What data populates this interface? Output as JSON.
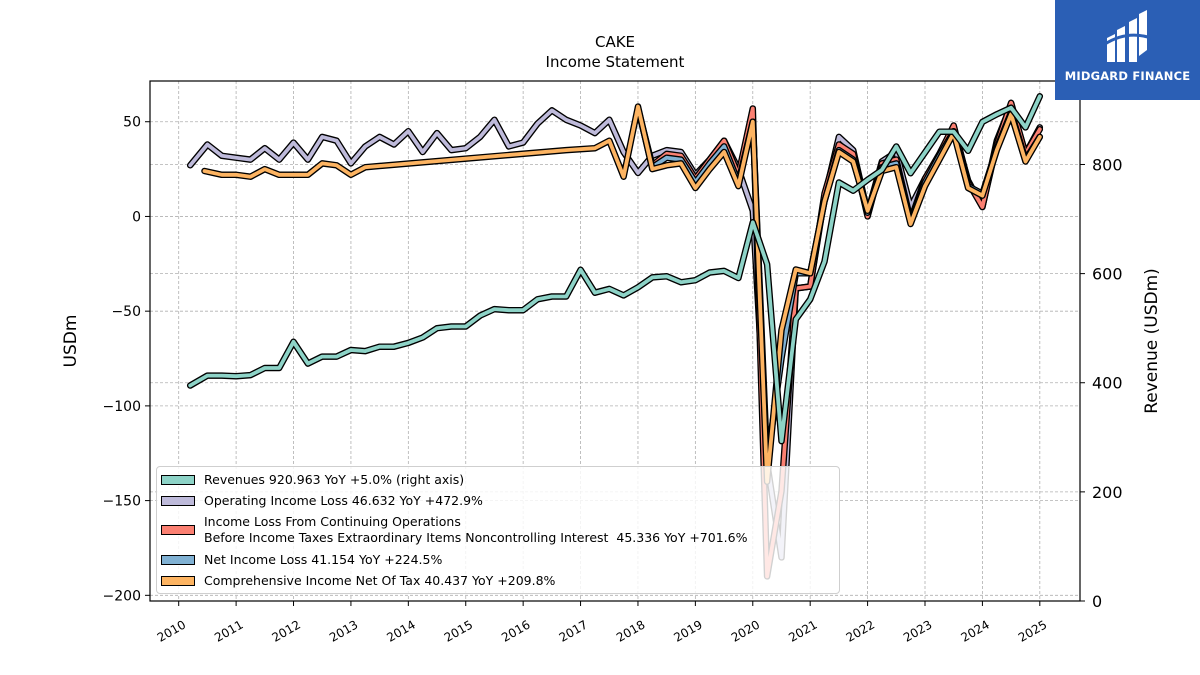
{
  "header": {
    "title": "CAKE",
    "subtitle": "Income Statement"
  },
  "logo": {
    "text": "MIDGARD FINANCE",
    "icon": "midgard-logo-icon",
    "background": "#2b5fb5"
  },
  "chart_data": {
    "type": "line",
    "title": "CAKE",
    "subtitle": "Income Statement",
    "ylabel": "USDm",
    "ylabel_right": "Revenue (USDm)",
    "ylim": [
      -203,
      71.5
    ],
    "ylim_right": [
      0,
      953
    ],
    "yticks": [
      -200,
      -150,
      -100,
      -50,
      0,
      50
    ],
    "yticks_right": [
      0,
      200,
      400,
      600,
      800
    ],
    "xlim": [
      2009.5,
      2025.7
    ],
    "xticks": [
      "2010",
      "2011",
      "2012",
      "2013",
      "2014",
      "2015",
      "2016",
      "2017",
      "2018",
      "2019",
      "2020",
      "2021",
      "2022",
      "2023",
      "2024",
      "2025"
    ],
    "grid": true,
    "legend_position": "lower-left",
    "legend": [
      "Revenues  920.963 YoY +5.0% (right axis)",
      "Operating Income Loss  46.632 YoY +472.9%",
      "Income Loss From Continuing Operations\nBefore Income Taxes Extraordinary Items Noncontrolling Interest  45.336 YoY +701.6%",
      "Net Income Loss  41.154 YoY +224.5%",
      "Comprehensive Income Net Of Tax  40.437 YoY +209.8%"
    ],
    "series": [
      {
        "name": "Revenues",
        "axis": "right",
        "color": "#8dd3c7",
        "x": [
          2010.2,
          2010.5,
          2010.75,
          2011.0,
          2011.25,
          2011.5,
          2011.75,
          2012.0,
          2012.25,
          2012.5,
          2012.75,
          2013.0,
          2013.25,
          2013.5,
          2013.75,
          2014.0,
          2014.25,
          2014.5,
          2014.75,
          2015.0,
          2015.25,
          2015.5,
          2015.75,
          2016.0,
          2016.25,
          2016.5,
          2016.75,
          2017.0,
          2017.25,
          2017.5,
          2017.75,
          2018.0,
          2018.25,
          2018.5,
          2018.75,
          2019.0,
          2019.25,
          2019.5,
          2019.75,
          2020.0,
          2020.25,
          2020.5,
          2020.75,
          2021.0,
          2021.25,
          2021.5,
          2021.75,
          2022.0,
          2022.25,
          2022.5,
          2022.75,
          2023.0,
          2023.25,
          2023.5,
          2023.75,
          2024.0,
          2024.25,
          2024.5,
          2024.75,
          2025.0
        ],
        "values": [
          395,
          413,
          413,
          412,
          414,
          427,
          427,
          475,
          435,
          448,
          448,
          460,
          458,
          466,
          466,
          473,
          483,
          500,
          503,
          503,
          523,
          535,
          533,
          533,
          553,
          558,
          558,
          607,
          565,
          572,
          560,
          575,
          593,
          595,
          584,
          588,
          602,
          605,
          592,
          694,
          617,
          293,
          516,
          553,
          622,
          767,
          752,
          772,
          790,
          833,
          784,
          822,
          860,
          860,
          825,
          878,
          892,
          904,
          868,
          925
        ]
      },
      {
        "name": "Operating Income Loss",
        "axis": "left",
        "color": "#bebada",
        "x": [
          2010.2,
          2010.5,
          2010.75,
          2011.0,
          2011.25,
          2011.5,
          2011.75,
          2012.0,
          2012.25,
          2012.5,
          2012.75,
          2013.0,
          2013.25,
          2013.5,
          2013.75,
          2014.0,
          2014.25,
          2014.5,
          2014.75,
          2015.0,
          2015.25,
          2015.5,
          2015.75,
          2016.0,
          2016.25,
          2016.5,
          2016.75,
          2017.0,
          2017.25,
          2017.5,
          2017.75,
          2018.0,
          2018.25,
          2018.5,
          2018.75,
          2019.0,
          2019.25,
          2019.5,
          2019.75,
          2020.0,
          2020.25,
          2020.5,
          2020.75,
          2021.0,
          2021.25,
          2021.5,
          2021.75,
          2022.0,
          2022.25,
          2022.5,
          2022.75,
          2023.0,
          2023.25,
          2023.5,
          2023.75,
          2024.0,
          2024.25,
          2024.5,
          2024.75,
          2025.0
        ],
        "values": [
          27,
          38,
          32,
          31,
          30,
          36,
          30,
          39,
          30,
          42,
          40,
          28,
          37,
          42,
          38,
          45,
          34,
          44,
          35,
          36,
          42,
          51,
          37,
          39,
          49,
          56,
          51,
          48,
          44,
          51,
          34,
          23,
          32,
          35,
          34,
          22,
          30,
          40,
          25,
          3,
          -130,
          -180,
          -38,
          -37,
          10,
          42,
          35,
          2,
          29,
          34,
          5,
          20,
          32,
          46,
          19,
          5,
          40,
          59,
          33,
          47
        ]
      },
      {
        "name": "Income Loss From Continuing Operations Before Income Taxes Extraordinary Items Noncontrolling Interest",
        "axis": "left",
        "color": "#fb8072",
        "x": [
          2018.0,
          2018.25,
          2018.5,
          2018.75,
          2019.0,
          2019.25,
          2019.5,
          2019.75,
          2020.0,
          2020.25,
          2020.5,
          2020.75,
          2021.0,
          2021.25,
          2021.5,
          2021.75,
          2022.0,
          2022.25,
          2022.5,
          2022.75,
          2023.0,
          2023.25,
          2023.5,
          2023.75,
          2024.0,
          2024.25,
          2024.5,
          2024.75,
          2025.0
        ],
        "values": [
          57,
          27,
          33,
          32,
          20,
          30,
          40,
          22,
          57,
          -190,
          -145,
          -38,
          -37,
          12,
          38,
          33,
          0,
          28,
          30,
          -2,
          20,
          33,
          48,
          18,
          5,
          38,
          60,
          33,
          46
        ]
      },
      {
        "name": "Net Income Loss",
        "axis": "left",
        "color": "#80b1d3",
        "x": [
          2018.0,
          2018.25,
          2018.5,
          2018.75,
          2019.0,
          2019.25,
          2019.5,
          2019.75,
          2020.0,
          2020.25,
          2020.5,
          2020.75,
          2021.0,
          2021.25,
          2021.5,
          2021.75,
          2022.0,
          2022.25,
          2022.5,
          2022.75,
          2023.0,
          2023.25,
          2023.5,
          2023.75,
          2024.0,
          2024.25,
          2024.5,
          2024.75,
          2025.0
        ],
        "values": [
          57,
          26,
          31,
          30,
          18,
          28,
          37,
          18,
          50,
          -130,
          -75,
          -30,
          -30,
          8,
          35,
          30,
          2,
          26,
          28,
          -3,
          18,
          32,
          45,
          16,
          12,
          36,
          55,
          30,
          42
        ]
      },
      {
        "name": "Comprehensive Income Net Of Tax",
        "axis": "left",
        "color": "#fdb462",
        "x": [
          2010.45,
          2010.75,
          2011.0,
          2011.25,
          2011.5,
          2011.75,
          2012.0,
          2012.25,
          2012.5,
          2012.75,
          2013.0,
          2013.25,
          2016.75,
          2017.25,
          2017.5,
          2017.75,
          2018.0,
          2018.25,
          2018.5,
          2018.75,
          2019.0,
          2019.25,
          2019.5,
          2019.75,
          2020.0,
          2020.25,
          2020.5,
          2020.75,
          2021.0,
          2021.25,
          2021.5,
          2021.75,
          2022.0,
          2022.25,
          2022.5,
          2022.75,
          2023.0,
          2023.25,
          2023.5,
          2023.75,
          2024.0,
          2024.25,
          2024.5,
          2024.75,
          2025.0
        ],
        "values": [
          24,
          22,
          22,
          21,
          25,
          22,
          22,
          22,
          28,
          27,
          22,
          26,
          35,
          36,
          40,
          21,
          58,
          25,
          27,
          28,
          15,
          25,
          34,
          16,
          50,
          -140,
          -60,
          -28,
          -30,
          8,
          34,
          29,
          3,
          24,
          26,
          -4,
          16,
          30,
          44,
          15,
          11,
          35,
          54,
          29,
          42
        ]
      }
    ]
  }
}
